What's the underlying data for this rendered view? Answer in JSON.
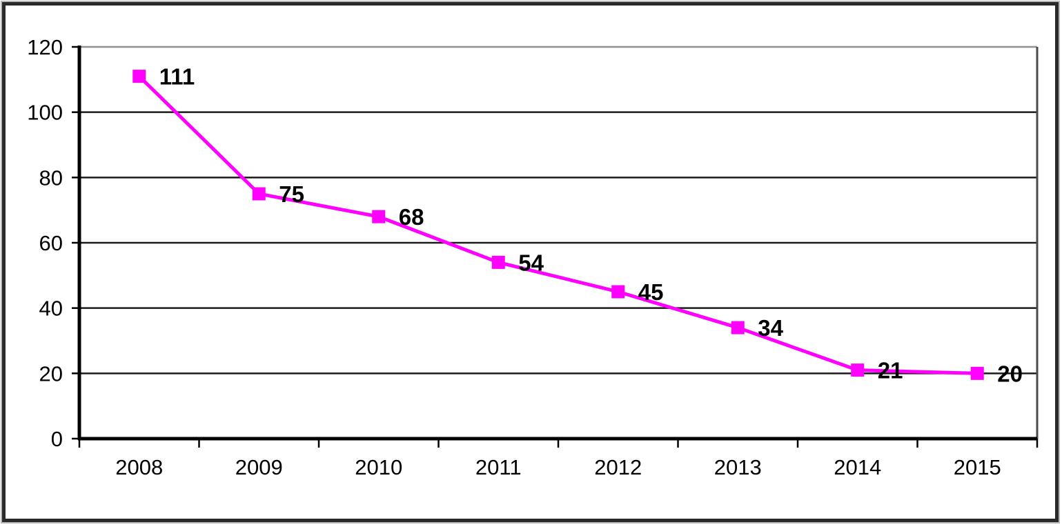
{
  "chart_data": {
    "type": "line",
    "categories": [
      "2008",
      "2009",
      "2010",
      "2011",
      "2012",
      "2013",
      "2014",
      "2015"
    ],
    "series": [
      {
        "name": "values",
        "values": [
          111,
          75,
          68,
          54,
          45,
          34,
          21,
          20
        ],
        "data_labels": [
          "111",
          "75",
          "68",
          "54",
          "45",
          "34",
          "21",
          "20"
        ],
        "line_color": "#ff00ff",
        "marker": "square",
        "marker_color": "#ff00ff"
      }
    ],
    "title": "",
    "xlabel": "",
    "ylabel": "",
    "ylim": [
      0,
      120
    ],
    "y_ticks": [
      0,
      20,
      40,
      60,
      80,
      100,
      120
    ],
    "y_tick_labels": [
      "0",
      "20",
      "40",
      "60",
      "80",
      "100",
      "120"
    ],
    "grid": "horizontal",
    "legend": "none",
    "colors": {
      "gridline": "#1a1a1a",
      "top_gridline": "#909090",
      "axis": "#000000",
      "plot_right_border": "#4a4a4a",
      "background": "#ffffff",
      "label_text": "#000000"
    }
  }
}
